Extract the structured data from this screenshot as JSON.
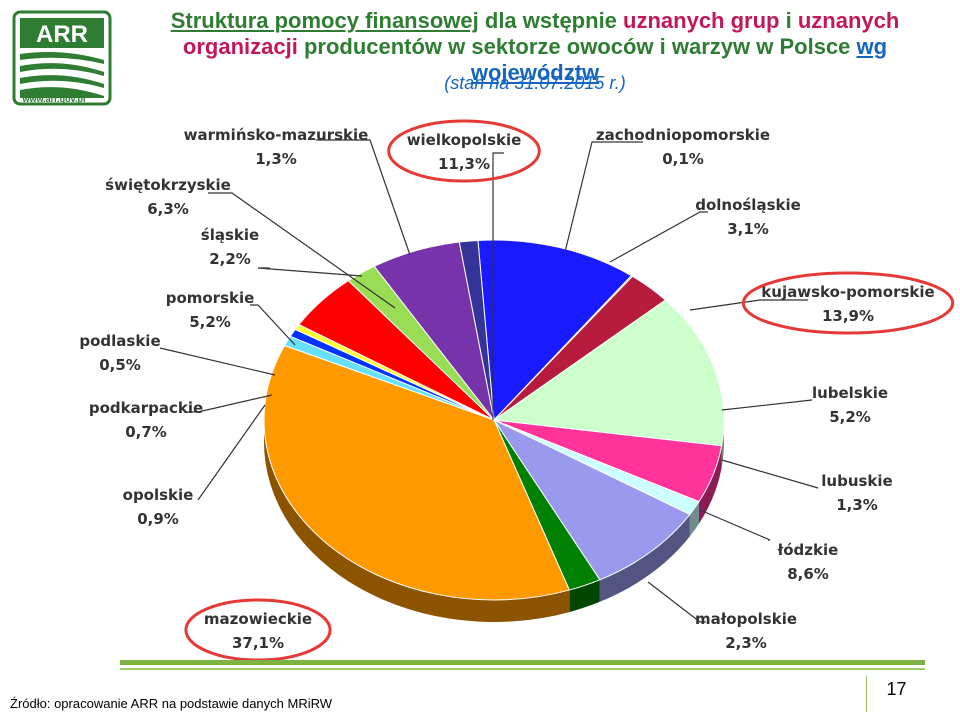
{
  "logo": {
    "name": "ARR",
    "url": "www.arr.gov.pl"
  },
  "title": {
    "part1": "Struktura pomocy finansowej",
    "part2": " dla wstępnie ",
    "part3": "uznanych grup",
    "part4": " i ",
    "part5": "uznanych",
    "part6": "organizacji",
    "part7": " producentów w sektorze owoców i warzyw w Polsce ",
    "part8": "wg województw"
  },
  "subtitle": "(stan na 31.07.2015 r.)",
  "chart_data": {
    "type": "pie",
    "title": "Struktura pomocy finansowej dla wstępnie uznanych grup i uznanych organizacji producentów w sektorze owoców i warzyw w Polsce wg województw",
    "unit": "%",
    "slices": [
      {
        "label": "wielkopolskie",
        "value": 11.3,
        "display": "11,3%",
        "color": "#1a1aff",
        "highlight": true
      },
      {
        "label": "zachodniopomorskie",
        "value": 0.1,
        "display": "0,1%",
        "color": "#00897b"
      },
      {
        "label": "dolnośląskie",
        "value": 3.1,
        "display": "3,1%",
        "color": "#b71c3c"
      },
      {
        "label": "kujawsko-pomorskie",
        "value": 13.9,
        "display": "13,9%",
        "color": "#ccffcc",
        "highlight": true
      },
      {
        "label": "lubelskie",
        "value": 5.2,
        "display": "5,2%",
        "color": "#ff3399"
      },
      {
        "label": "lubuskie",
        "value": 1.3,
        "display": "1,3%",
        "color": "#ccffff"
      },
      {
        "label": "łódzkie",
        "value": 8.6,
        "display": "8,6%",
        "color": "#9999ee"
      },
      {
        "label": "małopolskie",
        "value": 2.3,
        "display": "2,3%",
        "color": "#008000"
      },
      {
        "label": "mazowieckie",
        "value": 37.1,
        "display": "37,1%",
        "color": "#ff9900",
        "highlight": true
      },
      {
        "label": "opolskie",
        "value": 0.9,
        "display": "0,9%",
        "color": "#66e0ff"
      },
      {
        "label": "podkarpackie",
        "value": 0.7,
        "display": "0,7%",
        "color": "#0033ff"
      },
      {
        "label": "podlaskie",
        "value": 0.5,
        "display": "0,5%",
        "color": "#ffff33"
      },
      {
        "label": "pomorskie",
        "value": 5.2,
        "display": "5,2%",
        "color": "#ff0000"
      },
      {
        "label": "śląskie",
        "value": 2.2,
        "display": "2,2%",
        "color": "#99dd55"
      },
      {
        "label": "świętokrzyskie",
        "value": 6.3,
        "display": "6,3%",
        "color": "#7733aa"
      },
      {
        "label": "warmińsko-mazurskie",
        "value": 1.3,
        "display": "1,3%",
        "color": "#333399"
      }
    ],
    "highlight_color": "#e53935"
  },
  "footer": {
    "source": "Źródło: opracowanie ARR na podstawie danych MRiRW",
    "page_number": "17"
  }
}
